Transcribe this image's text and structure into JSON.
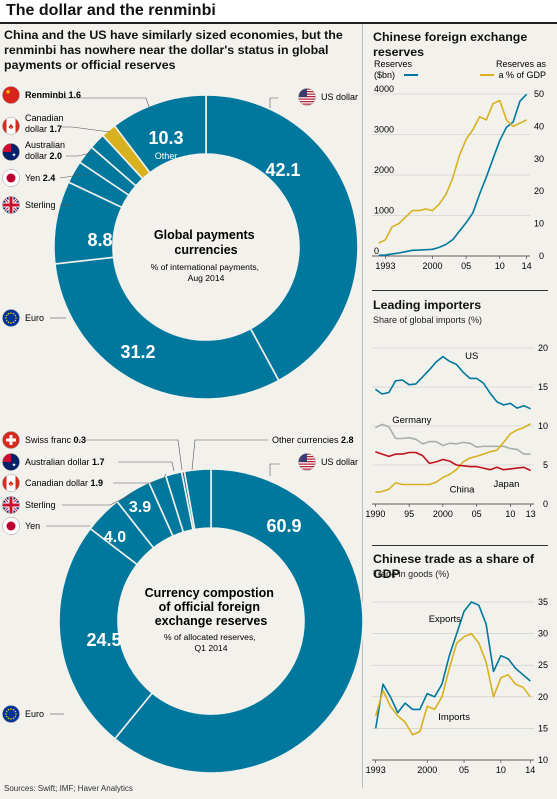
{
  "header": {
    "title": "The dollar and the renminbi"
  },
  "subtitle": "China and the US have similarly sized economies, but the renminbi has nowhere near the dollar's status in global payments or official reserves",
  "source": "Sources: Swift; IMF; Haver Analytics",
  "colors": {
    "dark_blue": "#00789e",
    "yellow": "#d7b11e",
    "red": "#c0111d",
    "grey": "#a9b0ac",
    "bg": "#f3f1ec"
  },
  "donut1": {
    "title": "Global payments currencies",
    "note": "% of international payments, Aug 2014",
    "big_labels": {
      "us": "42.1",
      "euro": "31.2",
      "sterling": "8.8",
      "other": "10.3",
      "other_text": "Other"
    },
    "legend": [
      {
        "name": "Renminbi",
        "value": "1.6",
        "flag": "china-flag"
      },
      {
        "name": "Canadian dollar",
        "value": "1.7",
        "flag": "canada-flag"
      },
      {
        "name": "Australian dollar",
        "value": "2.0",
        "flag": "australia-flag"
      },
      {
        "name": "Yen",
        "value": "2.4",
        "flag": "japan-flag"
      },
      {
        "name": "Sterling",
        "value": "",
        "flag": "uk-flag"
      },
      {
        "name": "Euro",
        "value": "",
        "flag": "eu-flag"
      },
      {
        "name": "US dollar",
        "value": "",
        "flag": "us-flag"
      }
    ]
  },
  "donut2": {
    "title": "Currency compostion of official foreign exchange reserves",
    "note": "% of allocated reserves, Q1 2014",
    "big_labels": {
      "us": "60.9",
      "euro": "24.5",
      "yen": "4.0",
      "sterling": "3.9"
    },
    "legend": [
      {
        "name": "Swiss franc",
        "value": "0.3",
        "flag": "swiss-flag"
      },
      {
        "name": "Australian dollar",
        "value": "1.7",
        "flag": "australia-flag"
      },
      {
        "name": "Canadian dollar",
        "value": "1.9",
        "flag": "canada-flag"
      },
      {
        "name": "Sterling",
        "value": "",
        "flag": "uk-flag"
      },
      {
        "name": "Yen",
        "value": "",
        "flag": "japan-flag"
      },
      {
        "name": "Euro",
        "value": "",
        "flag": "eu-flag"
      },
      {
        "name": "US dollar",
        "value": "",
        "flag": "us-flag"
      },
      {
        "name": "Other currencies",
        "value": "2.8",
        "flag": ""
      }
    ]
  },
  "panel1": {
    "title": "Chinese foreign exchange reserves",
    "legend_left": "Reserves ($bn)",
    "legend_right": "Reserves as a % of GDP"
  },
  "panel2": {
    "title": "Leading importers",
    "note": "Share of global imports (%)",
    "labels": {
      "us": "US",
      "germany": "Germany",
      "china": "China",
      "japan": "Japan"
    }
  },
  "panel3": {
    "title": "Chinese trade as a share of GDP",
    "note": "Trade in goods (%)",
    "labels": {
      "exports": "Exports",
      "imports": "Imports"
    }
  },
  "chart_data": [
    {
      "type": "pie",
      "title": "Global payments currencies",
      "subtitle": "% of international payments, Aug 2014",
      "categories": [
        "US dollar",
        "Euro",
        "Sterling",
        "Yen",
        "Australian dollar",
        "Canadian dollar",
        "Renminbi",
        "Other"
      ],
      "values": [
        42.1,
        31.2,
        8.8,
        2.4,
        2.0,
        1.7,
        1.6,
        10.3
      ]
    },
    {
      "type": "pie",
      "title": "Currency compostion of official foreign exchange reserves",
      "subtitle": "% of allocated reserves, Q1 2014",
      "categories": [
        "US dollar",
        "Euro",
        "Yen",
        "Sterling",
        "Canadian dollar",
        "Australian dollar",
        "Swiss franc",
        "Other currencies"
      ],
      "values": [
        60.9,
        24.5,
        4.0,
        3.9,
        1.9,
        1.7,
        0.3,
        2.8
      ]
    },
    {
      "type": "line",
      "title": "Chinese foreign exchange reserves",
      "xlim": [
        1991,
        2014.5
      ],
      "x_ticks": [
        1993,
        2000,
        2005,
        2010,
        2014
      ],
      "x_tick_labels": [
        "1993",
        "2000",
        "05",
        "10",
        "14"
      ],
      "ylim": [
        0,
        4000
      ],
      "y_ticks": [
        0,
        1000,
        2000,
        3000,
        4000
      ],
      "y2lim": [
        0,
        50
      ],
      "y2_ticks": [
        0,
        10,
        20,
        30,
        40,
        50
      ],
      "series": [
        {
          "name": "Reserves ($bn)",
          "axis": "left",
          "x": [
            1992,
            1993,
            1994,
            1995,
            1996,
            1997,
            1998,
            1999,
            2000,
            2001,
            2002,
            2003,
            2004,
            2005,
            2006,
            2007,
            2008,
            2009,
            2010,
            2011,
            2012,
            2013,
            2014
          ],
          "y": [
            20,
            22,
            52,
            74,
            105,
            140,
            145,
            155,
            166,
            212,
            286,
            403,
            610,
            819,
            1066,
            1528,
            1946,
            2399,
            2847,
            3181,
            3312,
            3821,
            3993
          ]
        },
        {
          "name": "Reserves as a % of GDP",
          "axis": "right",
          "x": [
            1992,
            1993,
            1994,
            1995,
            1996,
            1997,
            1998,
            1999,
            2000,
            2001,
            2002,
            2003,
            2004,
            2005,
            2006,
            2007,
            2008,
            2009,
            2010,
            2011,
            2012,
            2013,
            2014
          ],
          "y": [
            4,
            5,
            9,
            10,
            12,
            14,
            14,
            14.5,
            14,
            16,
            19,
            24,
            31,
            36,
            39,
            43,
            42,
            47,
            48,
            42,
            40,
            41,
            42
          ]
        }
      ]
    },
    {
      "type": "line",
      "title": "Leading importers",
      "ylabel": "Share of global imports (%)",
      "xlim": [
        1989.5,
        2013.5
      ],
      "x_ticks": [
        1990,
        1995,
        2000,
        2005,
        2010,
        2013
      ],
      "x_tick_labels": [
        "1990",
        "95",
        "2000",
        "05",
        "10",
        "13"
      ],
      "ylim": [
        0,
        20
      ],
      "y_ticks": [
        0,
        5,
        10,
        15,
        20
      ],
      "series": [
        {
          "name": "US",
          "x": [
            1990,
            1991,
            1992,
            1993,
            1994,
            1995,
            1996,
            1997,
            1998,
            1999,
            2000,
            2001,
            2002,
            2003,
            2004,
            2005,
            2006,
            2007,
            2008,
            2009,
            2010,
            2011,
            2012,
            2013
          ],
          "y": [
            14.7,
            14.1,
            14.3,
            15.8,
            15.9,
            15.3,
            15.4,
            16.3,
            17.2,
            18.2,
            18.9,
            18.3,
            17.9,
            16.9,
            16.1,
            16.1,
            15.5,
            14.2,
            13.1,
            12.7,
            12.9,
            12.3,
            12.6,
            12.2
          ]
        },
        {
          "name": "Germany",
          "x": [
            1990,
            1991,
            1992,
            1993,
            1994,
            1995,
            1996,
            1997,
            1998,
            1999,
            2000,
            2001,
            2002,
            2003,
            2004,
            2005,
            2006,
            2007,
            2008,
            2009,
            2010,
            2011,
            2012,
            2013
          ],
          "y": [
            9.8,
            10.2,
            9.9,
            8.4,
            8.4,
            8.5,
            8.3,
            7.7,
            8.0,
            8.0,
            7.5,
            7.8,
            7.7,
            7.9,
            7.8,
            7.3,
            7.4,
            7.4,
            7.4,
            7.4,
            7.1,
            7.0,
            6.4,
            6.4
          ]
        },
        {
          "name": "China",
          "x": [
            1990,
            1991,
            1992,
            1993,
            1994,
            1995,
            1996,
            1997,
            1998,
            1999,
            2000,
            2001,
            2002,
            2003,
            2004,
            2005,
            2006,
            2007,
            2008,
            2009,
            2010,
            2011,
            2012,
            2013
          ],
          "y": [
            1.5,
            1.6,
            1.9,
            2.7,
            2.5,
            2.5,
            2.5,
            2.5,
            2.5,
            2.8,
            3.4,
            3.8,
            4.4,
            5.4,
            5.9,
            6.1,
            6.4,
            6.7,
            6.9,
            7.9,
            9.0,
            9.5,
            9.8,
            10.3
          ]
        },
        {
          "name": "Japan",
          "x": [
            1990,
            1991,
            1992,
            1993,
            1994,
            1995,
            1996,
            1997,
            1998,
            1999,
            2000,
            2001,
            2002,
            2003,
            2004,
            2005,
            2006,
            2007,
            2008,
            2009,
            2010,
            2011,
            2012,
            2013
          ],
          "y": [
            6.7,
            6.4,
            6.1,
            6.4,
            6.4,
            6.6,
            6.6,
            6.2,
            5.2,
            5.4,
            5.7,
            5.5,
            5.0,
            4.9,
            4.8,
            4.8,
            4.6,
            4.4,
            4.7,
            4.4,
            4.5,
            4.6,
            4.7,
            4.3
          ]
        }
      ]
    },
    {
      "type": "line",
      "title": "Chinese trade as a share of GDP",
      "ylabel": "Trade in goods (%)",
      "xlim": [
        1992.5,
        2014.5
      ],
      "x_ticks": [
        1993,
        2000,
        2005,
        2010,
        2014
      ],
      "x_tick_labels": [
        "1993",
        "2000",
        "05",
        "10",
        "14"
      ],
      "ylim": [
        10,
        35
      ],
      "y_ticks": [
        10,
        15,
        20,
        25,
        30,
        35
      ],
      "series": [
        {
          "name": "Exports",
          "x": [
            1993,
            1994,
            1995,
            1996,
            1997,
            1998,
            1999,
            2000,
            2001,
            2002,
            2003,
            2004,
            2005,
            2006,
            2007,
            2008,
            2009,
            2010,
            2011,
            2012,
            2013,
            2014
          ],
          "y": [
            15,
            22,
            20,
            17.5,
            19,
            18,
            18,
            20.5,
            20,
            22,
            26.5,
            30,
            33.5,
            35,
            34.5,
            31.5,
            24,
            26.5,
            26,
            24.5,
            23.5,
            22.5
          ]
        },
        {
          "name": "Imports",
          "x": [
            1993,
            1994,
            1995,
            1996,
            1997,
            1998,
            1999,
            2000,
            2001,
            2002,
            2003,
            2004,
            2005,
            2006,
            2007,
            2008,
            2009,
            2010,
            2011,
            2012,
            2013,
            2014
          ],
          "y": [
            17,
            21,
            18.5,
            17,
            16,
            14,
            14.5,
            18.5,
            18,
            20,
            24.5,
            28.5,
            29.5,
            30,
            28.5,
            25.5,
            20,
            23,
            23.5,
            22,
            21.5,
            20
          ]
        }
      ]
    }
  ]
}
